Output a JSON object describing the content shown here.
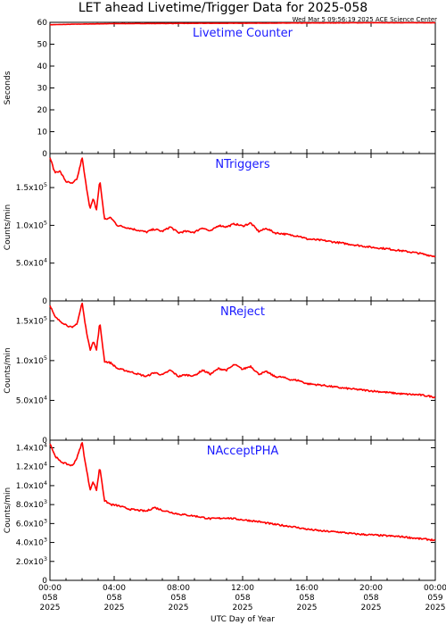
{
  "header": {
    "title": "LET ahead Livetime/Trigger Data for 2025-058",
    "stamp": "Wed Mar  5 09:56:19 2025 ACE Science Center"
  },
  "xaxis": {
    "label": "UTC Day of Year",
    "ticks": [
      {
        "hour": 0,
        "lines": [
          "00:00",
          "058",
          "2025"
        ]
      },
      {
        "hour": 4,
        "lines": [
          "04:00",
          "058",
          "2025"
        ]
      },
      {
        "hour": 8,
        "lines": [
          "08:00",
          "058",
          "2025"
        ]
      },
      {
        "hour": 12,
        "lines": [
          "12:00",
          "058",
          "2025"
        ]
      },
      {
        "hour": 16,
        "lines": [
          "16:00",
          "058",
          "2025"
        ]
      },
      {
        "hour": 20,
        "lines": [
          "20:00",
          "058",
          "2025"
        ]
      },
      {
        "hour": 24,
        "lines": [
          "00:00",
          "059",
          "2025"
        ]
      }
    ]
  },
  "chart_data": [
    {
      "type": "line",
      "title": "Livetime Counter",
      "ylabel": "Seconds",
      "ylim": [
        0,
        60
      ],
      "yticks": [
        {
          "v": 0,
          "t": "0"
        },
        {
          "v": 10,
          "t": "10"
        },
        {
          "v": 20,
          "t": "20"
        },
        {
          "v": 30,
          "t": "30"
        },
        {
          "v": 40,
          "t": "40"
        },
        {
          "v": 50,
          "t": "50"
        },
        {
          "v": 60,
          "t": "60"
        }
      ],
      "color": "#ff0000",
      "x_hours": [
        0,
        2,
        4,
        8,
        12,
        16,
        20,
        24
      ],
      "y": [
        58.9,
        59.2,
        59.4,
        59.5,
        59.6,
        59.7,
        59.8,
        59.8
      ]
    },
    {
      "type": "line",
      "title": "NTriggers",
      "ylabel": "Counts/min",
      "ylim": [
        0,
        195000
      ],
      "yticks": [
        {
          "v": 0,
          "t": "0"
        },
        {
          "v": 50000,
          "t": "5.0x10^4"
        },
        {
          "v": 100000,
          "t": "1.0x10^5"
        },
        {
          "v": 150000,
          "t": "1.5x10^5"
        }
      ],
      "color": "#ff0000",
      "x_hours": [
        0,
        0.3,
        0.6,
        1.0,
        1.4,
        1.7,
        2.0,
        2.2,
        2.5,
        2.7,
        2.9,
        3.1,
        3.4,
        3.8,
        4.2,
        5.0,
        6.0,
        6.5,
        7.0,
        7.5,
        8.0,
        8.4,
        9.0,
        9.5,
        10.0,
        10.5,
        11.0,
        11.5,
        12.0,
        12.5,
        13.0,
        13.5,
        14.0,
        14.5,
        15.0,
        15.5,
        16.0,
        17.0,
        18.0,
        19.0,
        20.0,
        21.0,
        22.0,
        23.0,
        23.7,
        24.0
      ],
      "y": [
        190000,
        170000,
        172000,
        158000,
        155000,
        162000,
        190000,
        160000,
        122000,
        135000,
        120000,
        160000,
        108000,
        110000,
        100000,
        96000,
        91000,
        95000,
        92000,
        98000,
        90000,
        92000,
        91000,
        97000,
        92000,
        100000,
        98000,
        102000,
        99000,
        103000,
        92000,
        96000,
        90000,
        89000,
        87000,
        86000,
        82000,
        80000,
        77000,
        74000,
        71000,
        69000,
        66000,
        63000,
        60000,
        59000
      ]
    },
    {
      "type": "line",
      "title": "NReject",
      "ylabel": "Counts/min",
      "ylim": [
        0,
        175000
      ],
      "yticks": [
        {
          "v": 0,
          "t": "0"
        },
        {
          "v": 50000,
          "t": "5.0x10^4"
        },
        {
          "v": 100000,
          "t": "1.0x10^5"
        },
        {
          "v": 150000,
          "t": "1.5x10^5"
        }
      ],
      "color": "#ff0000",
      "x_hours": [
        0,
        0.3,
        0.6,
        1.0,
        1.4,
        1.7,
        2.0,
        2.2,
        2.5,
        2.7,
        2.9,
        3.1,
        3.4,
        3.8,
        4.2,
        5.0,
        6.0,
        6.5,
        7.0,
        7.5,
        8.0,
        8.4,
        9.0,
        9.5,
        10.0,
        10.5,
        11.0,
        11.5,
        12.0,
        12.5,
        13.0,
        13.5,
        14.0,
        14.5,
        15.0,
        15.5,
        16.0,
        17.0,
        18.0,
        19.0,
        20.0,
        21.0,
        22.0,
        23.0,
        23.7,
        24.0
      ],
      "y": [
        170000,
        155000,
        150000,
        145000,
        141000,
        147000,
        173000,
        145000,
        113000,
        125000,
        113000,
        148000,
        99000,
        97000,
        90000,
        86000,
        80000,
        85000,
        82000,
        88000,
        80000,
        82000,
        81000,
        88000,
        83000,
        90000,
        88000,
        95000,
        89000,
        93000,
        83000,
        86000,
        80000,
        79000,
        76000,
        75000,
        71000,
        69000,
        66000,
        64000,
        62000,
        60000,
        58000,
        57000,
        55000,
        54000
      ]
    },
    {
      "type": "line",
      "title": "NAcceptPHA",
      "ylabel": "Counts/min",
      "ylim": [
        0,
        14800
      ],
      "yticks": [
        {
          "v": 0,
          "t": "0"
        },
        {
          "v": 2000,
          "t": "2.0x10^3"
        },
        {
          "v": 4000,
          "t": "4.0x10^3"
        },
        {
          "v": 6000,
          "t": "6.0x10^3"
        },
        {
          "v": 8000,
          "t": "8.0x10^3"
        },
        {
          "v": 10000,
          "t": "1.0x10^4"
        },
        {
          "v": 12000,
          "t": "1.2x10^4"
        },
        {
          "v": 14000,
          "t": "1.4x10^4"
        }
      ],
      "color": "#ff0000",
      "x_hours": [
        0,
        0.3,
        0.6,
        1.0,
        1.4,
        1.7,
        2.0,
        2.2,
        2.5,
        2.7,
        2.9,
        3.1,
        3.4,
        3.8,
        4.2,
        5.0,
        6.0,
        6.5,
        7.0,
        8.0,
        9.0,
        10.0,
        11.0,
        12.0,
        13.0,
        14.0,
        15.0,
        16.0,
        17.0,
        18.0,
        19.0,
        20.0,
        21.0,
        22.0,
        23.0,
        23.7,
        24.0
      ],
      "y": [
        14500,
        13200,
        12600,
        12300,
        12100,
        13000,
        14600,
        12400,
        9600,
        10400,
        9500,
        12000,
        8400,
        8000,
        7900,
        7500,
        7300,
        7700,
        7400,
        7000,
        6800,
        6500,
        6600,
        6400,
        6200,
        5900,
        5700,
        5400,
        5200,
        5100,
        4900,
        4800,
        4700,
        4600,
        4400,
        4300,
        4200
      ]
    }
  ]
}
